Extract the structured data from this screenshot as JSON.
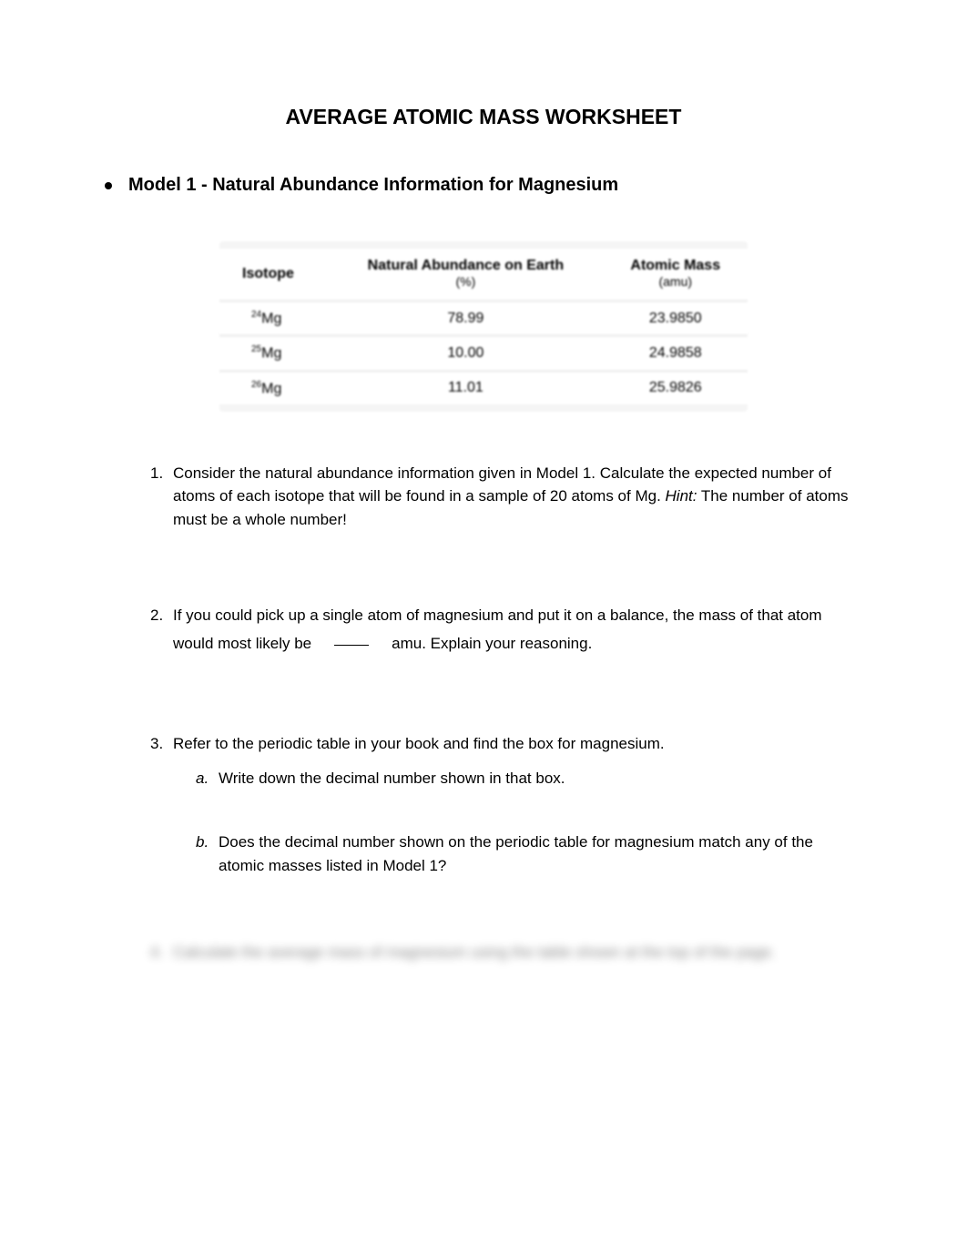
{
  "title": "AVERAGE ATOMIC MASS WORKSHEET",
  "section": {
    "title": "Model 1 - Natural Abundance Information for Magnesium"
  },
  "table": {
    "headers": {
      "col1": "Isotope",
      "col2_line1": "Natural Abundance on Earth",
      "col2_line2": "(%)",
      "col3_line1": "Atomic Mass",
      "col3_line2": "(amu)"
    },
    "rows": [
      {
        "isotope_mass": "24",
        "element": "Mg",
        "abundance": "78.99",
        "mass": "23.9850"
      },
      {
        "isotope_mass": "25",
        "element": "Mg",
        "abundance": "10.00",
        "mass": "24.9858"
      },
      {
        "isotope_mass": "26",
        "element": "Mg",
        "abundance": "11.01",
        "mass": "25.9826"
      }
    ]
  },
  "questions": {
    "q1": {
      "number": "1.",
      "text": "Consider the natural abundance information given in Model 1. Calculate the expected number of atoms of each isotope that will be found in a sample of 20 atoms of Mg. ",
      "hint_label": "Hint:",
      "hint_text": " The number of atoms must be a whole number!"
    },
    "q2": {
      "number": "2.",
      "line1": "If you could pick up a single atom of magnesium and put it on a balance, the mass of that atom",
      "line2_before": "would most likely be",
      "line2_after": "amu. Explain your reasoning."
    },
    "q3": {
      "number": "3.",
      "text": "Refer to the periodic table in your book and find the box for magnesium.",
      "sub_a": {
        "letter": "a.",
        "text": "Write down the decimal number shown in that box."
      },
      "sub_b": {
        "letter": "b.",
        "text": "Does the decimal number shown on the periodic table for magnesium match any of the atomic masses listed in Model 1?"
      }
    },
    "q4": {
      "number": "4.",
      "text": "Calculate the average mass of magnesium using the table shown at the top of the page."
    }
  },
  "colors": {
    "background": "#ffffff",
    "text": "#000000",
    "table_bg": "#f5f5f5",
    "table_cell": "#ffffff",
    "table_border": "#f0f0f0"
  }
}
